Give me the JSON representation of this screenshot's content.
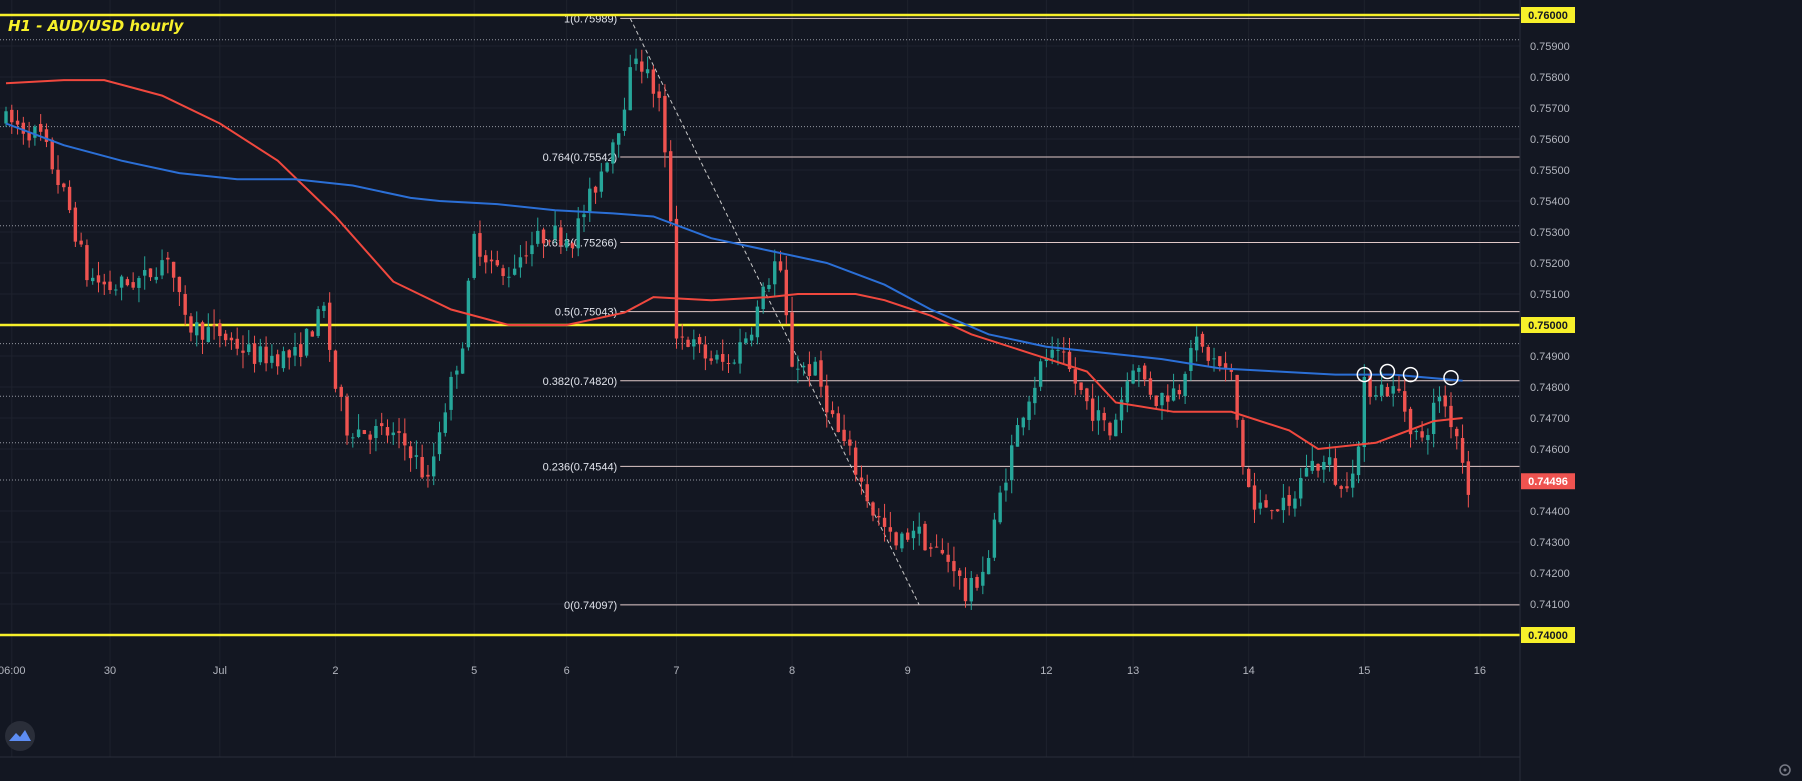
{
  "header": {
    "title": "H1 - AUD/USD hourly"
  },
  "colors": {
    "background": "#131722",
    "bull": "#26a69a",
    "bear": "#ef5350",
    "ma_fast": "#f0483e",
    "ma_slow": "#2b6fd6",
    "key_level": "#f7f02a",
    "fib_line": "#e0c8c8",
    "text": "#b2b5be",
    "last_price_bg": "#ef5350"
  },
  "chart_data": {
    "type": "candlestick",
    "title": "H1 - AUD/USD hourly",
    "ylim": [
      0.7394,
      0.7602
    ],
    "y_ticks": [
      "0.75900",
      "0.75800",
      "0.75700",
      "0.75600",
      "0.75500",
      "0.75400",
      "0.75300",
      "0.75200",
      "0.75100",
      "0.74900",
      "0.74800",
      "0.74700",
      "0.74600",
      "0.74400",
      "0.74300",
      "0.74200",
      "0.74100"
    ],
    "key_levels": [
      "0.76000",
      "0.75000",
      "0.74000"
    ],
    "last_price": "0.74496",
    "x_ticks": [
      {
        "label": "06:00",
        "i": 1
      },
      {
        "label": "30",
        "i": 18
      },
      {
        "label": "Jul",
        "i": 37
      },
      {
        "label": "2",
        "i": 57
      },
      {
        "label": "5",
        "i": 81
      },
      {
        "label": "6",
        "i": 97
      },
      {
        "label": "7",
        "i": 116
      },
      {
        "label": "8",
        "i": 136
      },
      {
        "label": "9",
        "i": 156
      },
      {
        "label": "12",
        "i": 180
      },
      {
        "label": "13",
        "i": 195
      },
      {
        "label": "14",
        "i": 215
      },
      {
        "label": "15",
        "i": 235
      },
      {
        "label": "16",
        "i": 255
      }
    ],
    "fib_levels": [
      {
        "label": "1(0.75989)",
        "value": 0.75989
      },
      {
        "label": "0.764(0.75542)",
        "value": 0.75542
      },
      {
        "label": "0.618(0.75266)",
        "value": 0.75266
      },
      {
        "label": "0.5(0.75043)",
        "value": 0.75043
      },
      {
        "label": "0.382(0.74820)",
        "value": 0.7482
      },
      {
        "label": "0.236(0.74544)",
        "value": 0.74544
      },
      {
        "label": "0(0.74097)",
        "value": 0.74097
      }
    ],
    "dotted_levels": [
      0.7592,
      0.7564,
      0.7532,
      0.7494,
      0.7477,
      0.7462,
      0.745
    ],
    "fib_range": {
      "high_i": 108,
      "high": 0.75989,
      "low_i": 158,
      "low": 0.74097
    },
    "series": [
      {
        "type": "line",
        "points": [
          [
            0,
            0.7578
          ],
          [
            10,
            0.7579
          ],
          [
            17,
            0.7579
          ],
          [
            27,
            0.7574
          ],
          [
            37,
            0.7565
          ],
          [
            47,
            0.7553
          ],
          [
            57,
            0.7535
          ],
          [
            67,
            0.7514
          ],
          [
            77,
            0.7505
          ],
          [
            87,
            0.75
          ],
          [
            97,
            0.75
          ],
          [
            107,
            0.7504
          ],
          [
            112,
            0.7509
          ],
          [
            122,
            0.7508
          ],
          [
            132,
            0.7509
          ],
          [
            137,
            0.751
          ],
          [
            147,
            0.751
          ],
          [
            152,
            0.7508
          ],
          [
            160,
            0.7503
          ],
          [
            167,
            0.7497
          ],
          [
            177,
            0.7491
          ],
          [
            187,
            0.7485
          ],
          [
            192,
            0.7475
          ],
          [
            202,
            0.7472
          ],
          [
            212,
            0.7472
          ],
          [
            222,
            0.7466
          ],
          [
            227,
            0.746
          ],
          [
            237,
            0.7462
          ],
          [
            247,
            0.7469
          ],
          [
            252,
            0.747
          ]
        ]
      },
      {
        "type": "line",
        "points": [
          [
            0,
            0.7565
          ],
          [
            10,
            0.7558
          ],
          [
            20,
            0.7553
          ],
          [
            30,
            0.7549
          ],
          [
            40,
            0.7547
          ],
          [
            50,
            0.7547
          ],
          [
            60,
            0.7545
          ],
          [
            70,
            0.7541
          ],
          [
            75,
            0.754
          ],
          [
            85,
            0.7539
          ],
          [
            95,
            0.7537
          ],
          [
            105,
            0.7536
          ],
          [
            112,
            0.7535
          ],
          [
            122,
            0.7528
          ],
          [
            132,
            0.7524
          ],
          [
            142,
            0.752
          ],
          [
            152,
            0.7513
          ],
          [
            160,
            0.7505
          ],
          [
            170,
            0.7497
          ],
          [
            180,
            0.7493
          ],
          [
            190,
            0.7491
          ],
          [
            200,
            0.7489
          ],
          [
            210,
            0.7486
          ],
          [
            220,
            0.7485
          ],
          [
            230,
            0.7484
          ],
          [
            240,
            0.7484
          ],
          [
            252,
            0.7482
          ]
        ]
      }
    ],
    "candle_path": [
      [
        0,
        0.7566
      ],
      [
        6,
        0.7561
      ],
      [
        11,
        0.7537
      ],
      [
        14,
        0.7516
      ],
      [
        18,
        0.7512
      ],
      [
        24,
        0.7515
      ],
      [
        28,
        0.7523
      ],
      [
        31,
        0.75
      ],
      [
        37,
        0.7497
      ],
      [
        43,
        0.749
      ],
      [
        50,
        0.749
      ],
      [
        55,
        0.7505
      ],
      [
        57,
        0.748
      ],
      [
        59,
        0.7467
      ],
      [
        66,
        0.7465
      ],
      [
        70,
        0.746
      ],
      [
        73,
        0.7449
      ],
      [
        75,
        0.7467
      ],
      [
        79,
        0.7495
      ],
      [
        81,
        0.7528
      ],
      [
        86,
        0.7515
      ],
      [
        90,
        0.7525
      ],
      [
        94,
        0.753
      ],
      [
        98,
        0.7528
      ],
      [
        102,
        0.7545
      ],
      [
        106,
        0.7565
      ],
      [
        109,
        0.7588
      ],
      [
        113,
        0.7572
      ],
      [
        115,
        0.7535
      ],
      [
        116,
        0.7498
      ],
      [
        121,
        0.749
      ],
      [
        125,
        0.7487
      ],
      [
        129,
        0.75
      ],
      [
        133,
        0.752
      ],
      [
        134,
        0.7515
      ],
      [
        136,
        0.7488
      ],
      [
        140,
        0.7485
      ],
      [
        144,
        0.7465
      ],
      [
        146,
        0.7458
      ],
      [
        150,
        0.744
      ],
      [
        154,
        0.7428
      ],
      [
        157,
        0.7435
      ],
      [
        160,
        0.7428
      ],
      [
        164,
        0.7423
      ],
      [
        166,
        0.7412
      ],
      [
        168,
        0.7418
      ],
      [
        170,
        0.7425
      ],
      [
        172,
        0.7445
      ],
      [
        174,
        0.746
      ],
      [
        176,
        0.7473
      ],
      [
        180,
        0.749
      ],
      [
        183,
        0.7488
      ],
      [
        187,
        0.7475
      ],
      [
        191,
        0.7465
      ],
      [
        195,
        0.7488
      ],
      [
        199,
        0.7476
      ],
      [
        203,
        0.748
      ],
      [
        205,
        0.7495
      ],
      [
        208,
        0.749
      ],
      [
        212,
        0.7483
      ],
      [
        214,
        0.7455
      ],
      [
        216,
        0.744
      ],
      [
        219,
        0.7443
      ],
      [
        222,
        0.744
      ],
      [
        225,
        0.7455
      ],
      [
        229,
        0.7455
      ],
      [
        231,
        0.7446
      ],
      [
        234,
        0.746
      ],
      [
        235,
        0.748
      ],
      [
        238,
        0.748
      ],
      [
        241,
        0.7478
      ],
      [
        243,
        0.7468
      ],
      [
        245,
        0.7462
      ],
      [
        248,
        0.7478
      ],
      [
        251,
        0.7465
      ],
      [
        253,
        0.7448
      ]
    ],
    "markers": [
      {
        "i": 235,
        "value": 0.7484
      },
      {
        "i": 239,
        "value": 0.7485
      },
      {
        "i": 243,
        "value": 0.7484
      },
      {
        "i": 250,
        "value": 0.7483
      }
    ]
  }
}
